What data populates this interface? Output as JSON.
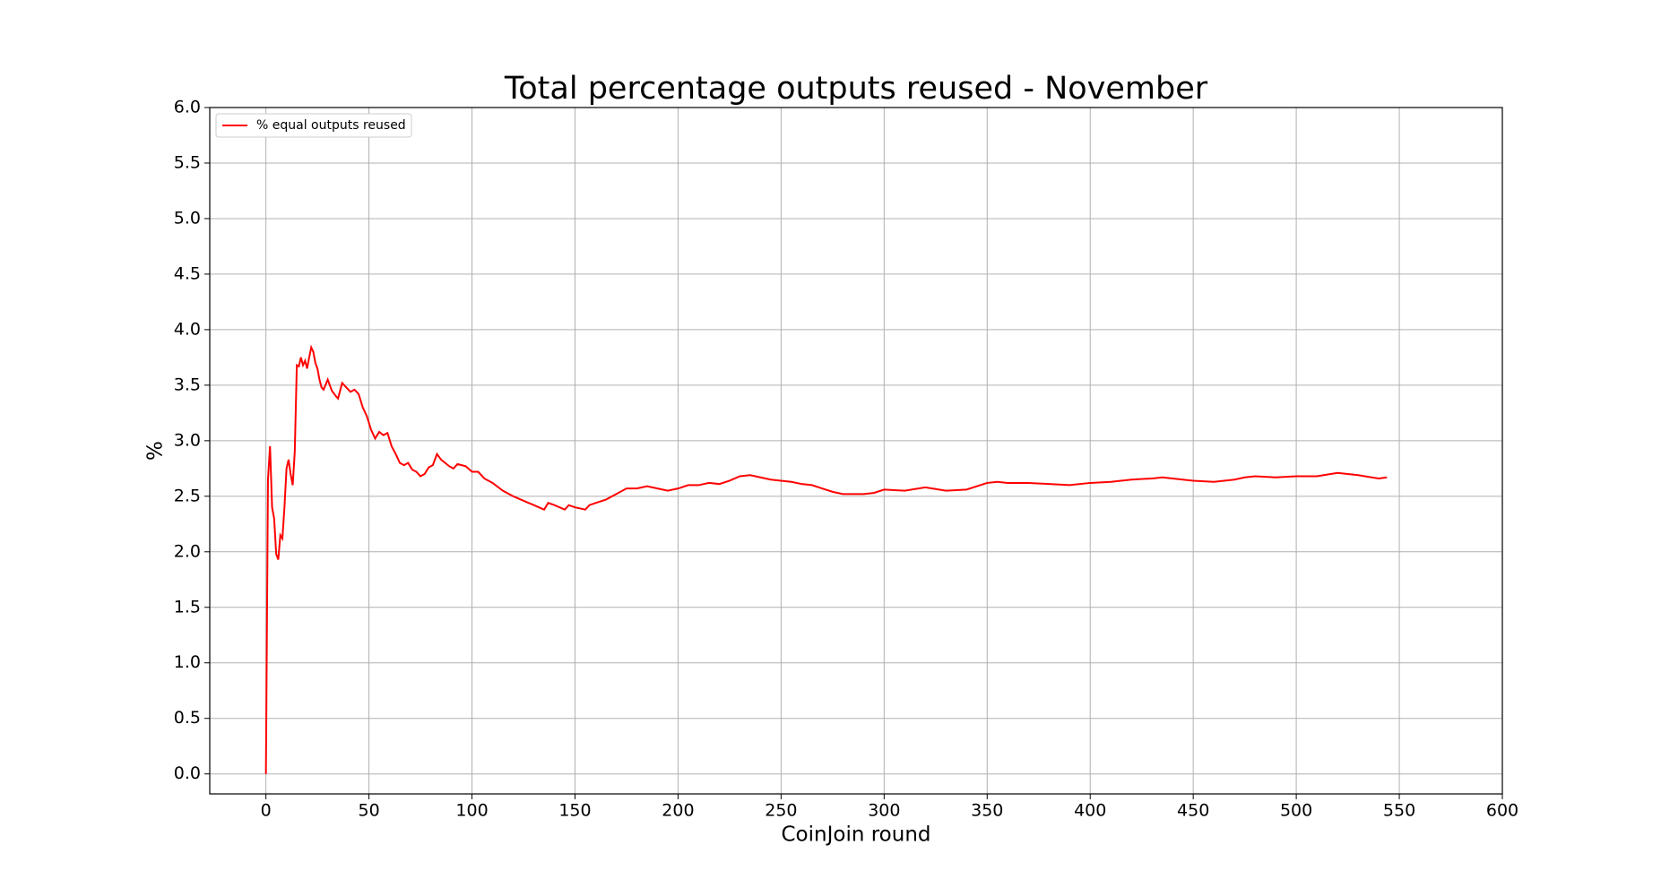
{
  "chart_data": {
    "type": "line",
    "title": "Total percentage outputs reused - November",
    "x_label": "CoinJoin round",
    "y_label": "%",
    "x": [
      0,
      1,
      2,
      3,
      4,
      5,
      6,
      7,
      8,
      9,
      10,
      11,
      12,
      13,
      14,
      15,
      16,
      17,
      18,
      19,
      20,
      21,
      22,
      23,
      24,
      25,
      26,
      27,
      28,
      30,
      32,
      34,
      35,
      37,
      39,
      41,
      43,
      45,
      47,
      49,
      51,
      53,
      55,
      57,
      59,
      61,
      63,
      65,
      67,
      69,
      71,
      73,
      75,
      77,
      79,
      81,
      83,
      85,
      87,
      89,
      91,
      93,
      95,
      97,
      100,
      103,
      106,
      110,
      115,
      120,
      125,
      130,
      135,
      137,
      140,
      145,
      147,
      150,
      155,
      157,
      160,
      165,
      170,
      175,
      180,
      185,
      190,
      195,
      200,
      205,
      210,
      215,
      220,
      225,
      230,
      235,
      240,
      245,
      250,
      255,
      260,
      265,
      270,
      275,
      280,
      285,
      290,
      295,
      300,
      310,
      320,
      330,
      340,
      350,
      355,
      360,
      370,
      380,
      390,
      400,
      410,
      420,
      430,
      435,
      440,
      450,
      460,
      470,
      475,
      480,
      490,
      500,
      510,
      520,
      530,
      540,
      544
    ],
    "series": [
      {
        "name": "% equal outputs reused",
        "color": "#ff0000",
        "values": [
          0.0,
          2.65,
          2.95,
          2.4,
          2.3,
          1.98,
          1.93,
          2.15,
          2.12,
          2.4,
          2.75,
          2.83,
          2.7,
          2.6,
          2.9,
          3.68,
          3.67,
          3.75,
          3.68,
          3.72,
          3.65,
          3.75,
          3.84,
          3.8,
          3.7,
          3.65,
          3.55,
          3.48,
          3.46,
          3.55,
          3.45,
          3.4,
          3.38,
          3.52,
          3.48,
          3.44,
          3.46,
          3.42,
          3.3,
          3.22,
          3.1,
          3.02,
          3.08,
          3.05,
          3.07,
          2.95,
          2.88,
          2.8,
          2.78,
          2.8,
          2.74,
          2.72,
          2.68,
          2.7,
          2.76,
          2.78,
          2.88,
          2.83,
          2.8,
          2.77,
          2.75,
          2.79,
          2.78,
          2.77,
          2.72,
          2.72,
          2.66,
          2.62,
          2.55,
          2.5,
          2.46,
          2.42,
          2.38,
          2.44,
          2.42,
          2.38,
          2.42,
          2.4,
          2.38,
          2.42,
          2.44,
          2.47,
          2.52,
          2.57,
          2.57,
          2.59,
          2.57,
          2.55,
          2.57,
          2.6,
          2.6,
          2.62,
          2.61,
          2.64,
          2.68,
          2.69,
          2.67,
          2.65,
          2.64,
          2.63,
          2.61,
          2.6,
          2.57,
          2.54,
          2.52,
          2.52,
          2.52,
          2.53,
          2.56,
          2.55,
          2.58,
          2.55,
          2.56,
          2.62,
          2.63,
          2.62,
          2.62,
          2.61,
          2.6,
          2.62,
          2.63,
          2.65,
          2.66,
          2.67,
          2.66,
          2.64,
          2.63,
          2.65,
          2.67,
          2.68,
          2.67,
          2.68,
          2.68,
          2.71,
          2.69,
          2.66,
          2.67
        ]
      }
    ],
    "xlim": [
      -27.25,
      600
    ],
    "ylim": [
      -0.18,
      6.0
    ],
    "xticks": [
      0,
      50,
      100,
      150,
      200,
      250,
      300,
      350,
      400,
      450,
      500,
      550,
      600
    ],
    "yticks": [
      {
        "value": 0,
        "label": "0.0"
      },
      0.5,
      {
        "value": 1,
        "label": "1.0"
      },
      1.5,
      {
        "value": 2,
        "label": "2.0"
      },
      2.5,
      {
        "value": 3,
        "label": "3.0"
      },
      3.5,
      {
        "value": 4,
        "label": "4.0"
      },
      4.5,
      {
        "value": 5,
        "label": "5.0"
      },
      5.5,
      {
        "value": 6,
        "label": "6.0"
      }
    ],
    "grid": true,
    "legend": "upper left"
  }
}
